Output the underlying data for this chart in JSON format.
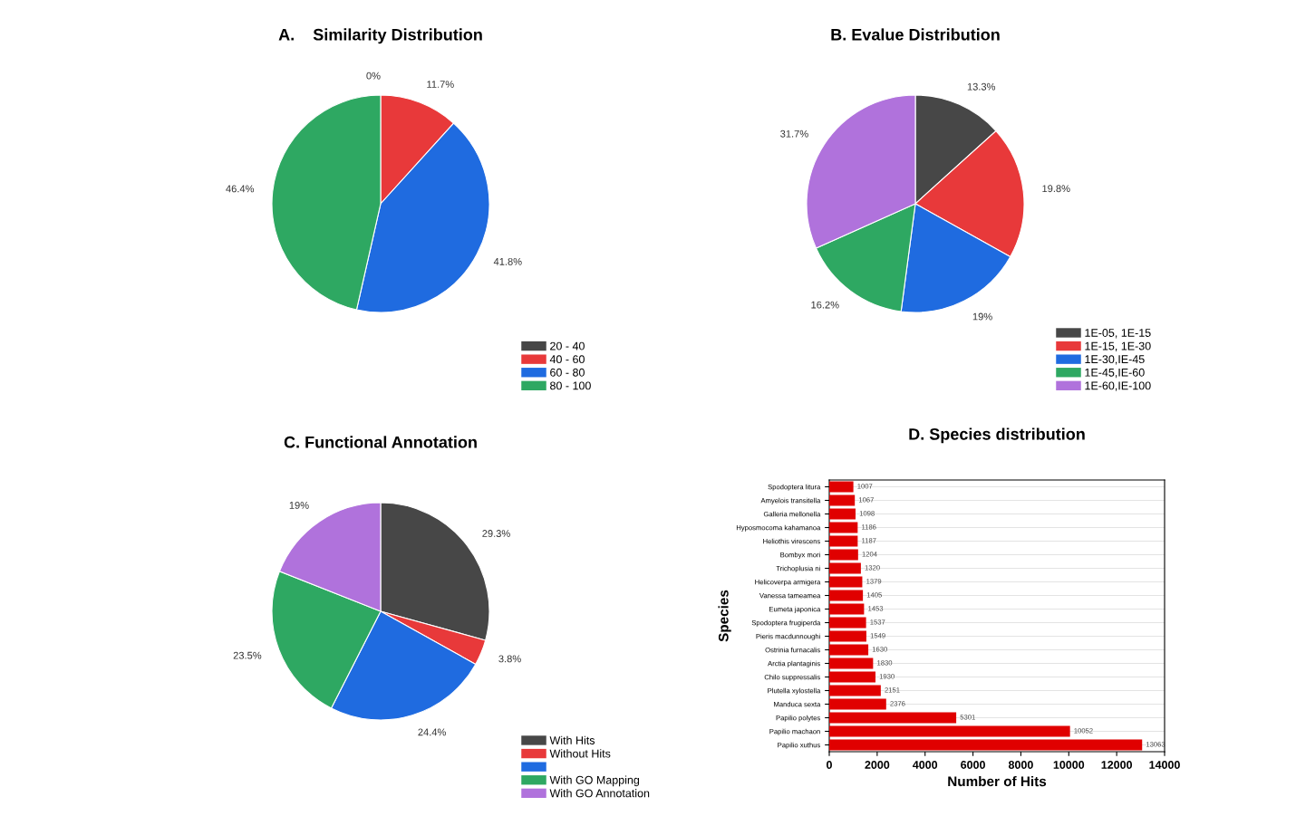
{
  "chart_data": [
    {
      "type": "pie",
      "title": "A.    Similarity Distribution",
      "categories": [
        "20 - 40",
        "40 - 60",
        "60 - 80",
        "80 - 100"
      ],
      "values": [
        0,
        11.7,
        41.8,
        46.4
      ],
      "colors": [
        "#474747",
        "#e8393a",
        "#1f6be0",
        "#2ea862"
      ],
      "value_labels": [
        "0%",
        "11.7%",
        "41.8%",
        "46.4%"
      ],
      "legend": "bottom right"
    },
    {
      "type": "pie",
      "title": "B. Evalue Distribution",
      "categories": [
        "1E-05, 1E-15",
        "1E-15, 1E-30",
        "1E-30,IE-45",
        "1E-45,IE-60",
        "1E-60,IE-100"
      ],
      "values": [
        13.3,
        19.8,
        19,
        16.2,
        31.7
      ],
      "colors": [
        "#474747",
        "#e8393a",
        "#1f6be0",
        "#2ea862",
        "#b072dc"
      ],
      "value_labels": [
        "13.3%",
        "19.8%",
        "19%",
        "16.2%",
        "31.7%"
      ],
      "legend": "bottom right"
    },
    {
      "type": "pie",
      "title": "C. Functional Annotation",
      "categories": [
        "With Hits",
        "Without Hits",
        null,
        "With GO Mapping",
        "With GO Annotation"
      ],
      "values": [
        29.3,
        3.8,
        24.4,
        23.5,
        19
      ],
      "colors": [
        "#474747",
        "#e8393a",
        "#1f6be0",
        "#2ea862",
        "#b072dc"
      ],
      "value_labels": [
        "29.3%",
        "3.8%",
        "24.4%",
        "23.5%",
        "19%"
      ],
      "legend": "bottom right"
    },
    {
      "type": "bar",
      "orientation": "horizontal",
      "title": "D. Species distribution",
      "xlabel": "Number of Hits",
      "ylabel": "Species",
      "categories": [
        "Spodoptera litura",
        "Amyelois transitella",
        "Galleria mellonella",
        "Hyposmocoma kahamanoa",
        "Heliothis virescens",
        "Bombyx mori",
        "Trichoplusia ni",
        "Helicoverpa armigera",
        "Vanessa tameamea",
        "Eumeta japonica",
        "Spodoptera frugiperda",
        "Pieris macdunnoughi",
        "Ostrinia furnacalis",
        "Arctia plantaginis",
        "Chilo suppressalis",
        "Plutella xylostella",
        "Manduca sexta",
        "Papilio polytes",
        "Papilio machaon",
        "Papilio xuthus"
      ],
      "values": [
        1007,
        1067,
        1098,
        1186,
        1187,
        1204,
        1320,
        1379,
        1405,
        1453,
        1537,
        1549,
        1630,
        1830,
        1930,
        2151,
        2376,
        5301,
        10052,
        13063
      ],
      "color": "#e00000",
      "data_labels": true,
      "xlim": [
        0,
        14000
      ],
      "xticks": [
        0,
        2000,
        4000,
        6000,
        8000,
        10000,
        12000,
        14000
      ],
      "grid": "y"
    }
  ]
}
